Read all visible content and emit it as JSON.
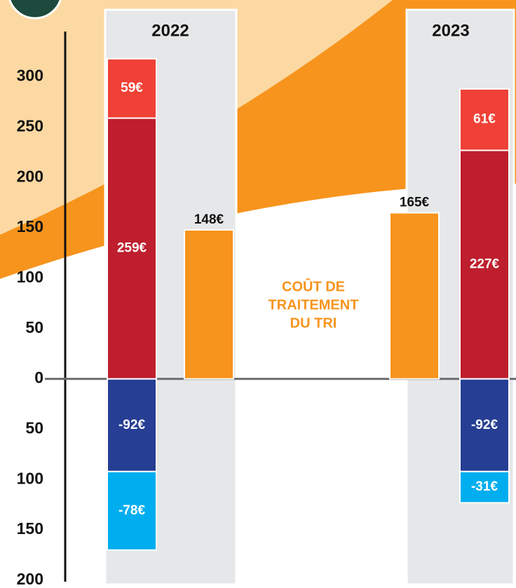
{
  "chart_data": {
    "type": "bar",
    "categories": [
      "2022",
      "2023"
    ],
    "series": [
      {
        "color": "#be1e2d",
        "values": [
          259,
          227
        ],
        "value_labels": [
          "259€",
          "227€"
        ]
      },
      {
        "color": "#ef4136",
        "values": [
          59,
          61
        ],
        "value_labels": [
          "59€",
          "61€"
        ]
      },
      {
        "color": "#263e93",
        "values": [
          -92,
          -92
        ],
        "value_labels": [
          "-92€",
          "-92€"
        ]
      },
      {
        "color": "#00aeef",
        "values": [
          -78,
          -31
        ],
        "value_labels": [
          "-78€",
          "-31€"
        ]
      },
      {
        "color": "#f7941d",
        "values": [
          148,
          165
        ],
        "value_labels": [
          "148€",
          "165€"
        ],
        "stacked": false
      }
    ],
    "annotation": [
      "COÛT DE",
      "TRAITEMENT",
      "DU TRI"
    ],
    "ylim": [
      -200,
      345
    ],
    "yticks": [
      {
        "value": -200,
        "label": "200"
      },
      {
        "value": -150,
        "label": "150"
      },
      {
        "value": -100,
        "label": "100"
      },
      {
        "value": -50,
        "label": "50"
      },
      0,
      50,
      100,
      150,
      200,
      250,
      300
    ]
  }
}
